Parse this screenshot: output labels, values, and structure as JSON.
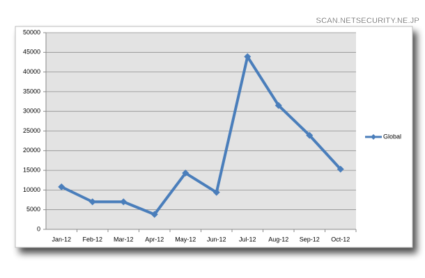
{
  "chart_data": {
    "type": "line",
    "watermark": "SCAN.NETSECURITY.NE.JP",
    "categories": [
      "Jan-12",
      "Feb-12",
      "Mar-12",
      "Apr-12",
      "May-12",
      "Jun-12",
      "Jul-12",
      "Aug-12",
      "Sep-12",
      "Oct-12"
    ],
    "series": [
      {
        "name": "Global",
        "color": "#4a7ebb",
        "values": [
          10800,
          7000,
          7000,
          3800,
          14300,
          9400,
          43900,
          31500,
          23900,
          15300
        ]
      }
    ],
    "ylim": [
      0,
      50000
    ],
    "yticks": [
      0,
      5000,
      10000,
      15000,
      20000,
      25000,
      30000,
      35000,
      40000,
      45000,
      50000
    ],
    "grid": true,
    "legend": "right"
  }
}
